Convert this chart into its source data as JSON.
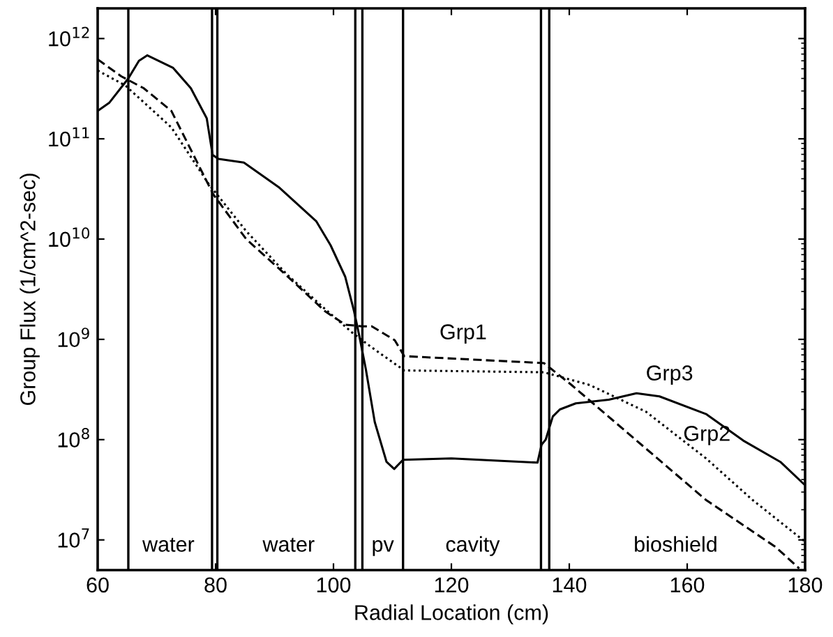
{
  "chart_data": {
    "type": "line",
    "xlabel": "Radial Location (cm)",
    "ylabel": "Group Flux (1/cm^2-sec)",
    "log": "y",
    "grid": false,
    "marker": "none",
    "xlim": [
      60,
      180
    ],
    "xticks": [
      60,
      80,
      100,
      120,
      140,
      160,
      180
    ],
    "ylim": [
      5000000.0,
      2000000000000.0
    ],
    "yticks": [
      {
        "value": 10000000.0,
        "label": "10$^{7}$"
      },
      {
        "value": 100000000.0,
        "label": "10$^{8}$"
      },
      {
        "value": 1000000000.0,
        "label": "10$^{9}$"
      },
      {
        "value": 10000000000.0,
        "label": "10$^{10}$"
      },
      {
        "value": 100000000000.0,
        "label": "10$^{11}$"
      },
      {
        "value": 1000000000000.0,
        "label": "10$^{12}$"
      }
    ],
    "series": [
      {
        "name": "Grp3",
        "color": "#000000",
        "line_style": "solid",
        "x": [
          60,
          62,
          65.2,
          67,
          68.4,
          72.8,
          75.8,
          78.5,
          79.5,
          80.5,
          84.8,
          90.7,
          97.1,
          99.5,
          102,
          103.5,
          104.5,
          105.5,
          107,
          109,
          110.3,
          111.8,
          120,
          134.6,
          135.3,
          136,
          137.2,
          138.4,
          141.1,
          146.7,
          151.4,
          155.3,
          163.2,
          169.5,
          175.8,
          179.8
        ],
        "values": [
          190000000000.0,
          230000000000.0,
          400000000000.0,
          600000000000.0,
          680000000000.0,
          510000000000.0,
          320000000000.0,
          160000000000.0,
          69000000000.0,
          63000000000.0,
          58000000000.0,
          33000000000.0,
          15000000000.0,
          8700000000.0,
          4200000000.0,
          1900000000.0,
          1000000000.0,
          500000000.0,
          150000000.0,
          60000000.0,
          51000000.0,
          63000000.0,
          65000000.0,
          59000000.0,
          89000000.0,
          100000000.0,
          170000000.0,
          200000000.0,
          230000000.0,
          250000000.0,
          290000000.0,
          270000000.0,
          180000000.0,
          98000000.0,
          60000000.0,
          36000000.0
        ]
      },
      {
        "name": "Grp1",
        "color": "#000000",
        "line_style": "dashed",
        "x": [
          60,
          64,
          67.8,
          72.5,
          79.6,
          85.2,
          92.3,
          98.6,
          102,
          104.9,
          106.5,
          110.4,
          112,
          135.7,
          140.4,
          151.4,
          163.2,
          175,
          179
        ],
        "values": [
          620000000000.0,
          420000000000.0,
          320000000000.0,
          190000000000.0,
          28000000000.0,
          10000000000.0,
          4200000000.0,
          1900000000.0,
          1400000000.0,
          1350000000.0,
          1350000000.0,
          980000000.0,
          680000000.0,
          580000000.0,
          350000000.0,
          98000000.0,
          25000000.0,
          8500000.0,
          5200000.0
        ]
      },
      {
        "name": "Grp2",
        "color": "#000000",
        "line_style": "dotted",
        "x": [
          60,
          64.7,
          72.5,
          78.9,
          85.2,
          92,
          98.6,
          103.3,
          106.5,
          112,
          135.7,
          143.5,
          153,
          163.2,
          171.1,
          179.8
        ],
        "values": [
          480000000000.0,
          340000000000.0,
          130000000000.0,
          35000000000.0,
          12000000000.0,
          4500000000.0,
          2000000000.0,
          1150000000.0,
          830000000.0,
          490000000.0,
          470000000.0,
          350000000.0,
          190000000.0,
          65000000.0,
          25000000.0,
          9800000.0
        ]
      }
    ],
    "ref_lines": [
      {
        "axis": "x",
        "value": 65.2,
        "color": "#000000"
      },
      {
        "axis": "x",
        "value": 79.4,
        "color": "#000000"
      },
      {
        "axis": "x",
        "value": 80.3,
        "color": "#000000"
      },
      {
        "axis": "x",
        "value": 103.7,
        "color": "#000000"
      },
      {
        "axis": "x",
        "value": 104.9,
        "color": "#000000"
      },
      {
        "axis": "x",
        "value": 111.8,
        "color": "#000000"
      },
      {
        "axis": "x",
        "value": 135.2,
        "color": "#000000"
      },
      {
        "axis": "x",
        "value": 136.6,
        "color": "#000000"
      }
    ],
    "annotations": [
      "water",
      "water",
      "pv",
      "cavity",
      "bioshield"
    ]
  }
}
